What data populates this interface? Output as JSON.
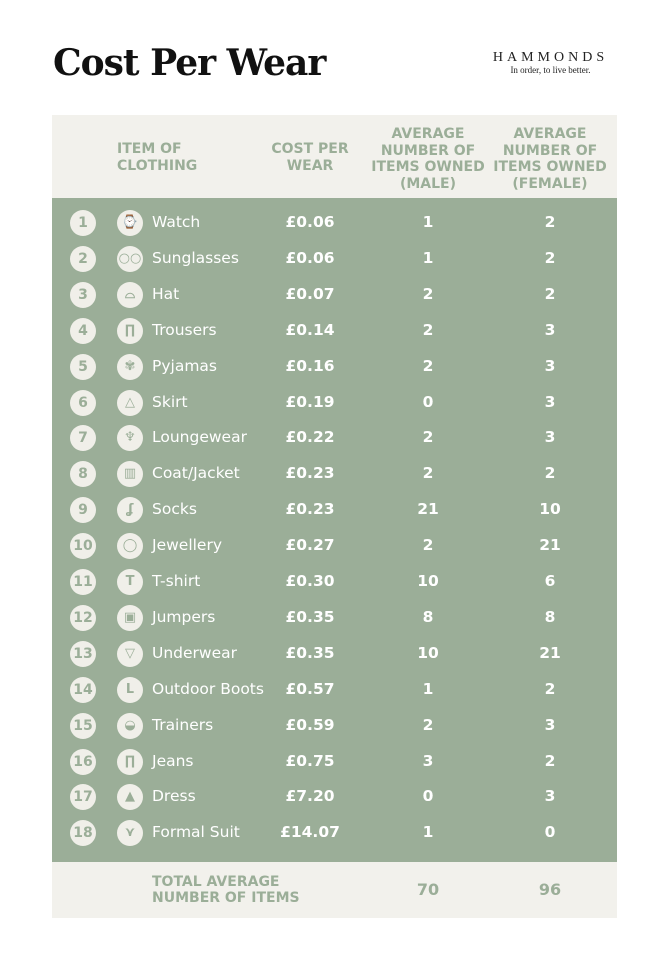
{
  "title": "Cost Per Wear",
  "brand": {
    "name": "HAMMONDS",
    "tagline": "In order, to live better."
  },
  "colors": {
    "green": "#9bae98",
    "cream": "#f2f1ec"
  },
  "headers": {
    "item": "ITEM OF CLOTHING",
    "cost": "COST PER WEAR",
    "male": "AVERAGE NUMBER OF ITEMS OWNED (MALE)",
    "female": "AVERAGE NUMBER OF ITEMS OWNED (FEMALE)"
  },
  "rows": [
    {
      "rank": "1",
      "icon": "watch-icon",
      "glyph": "⌚",
      "item": "Watch",
      "cost": "£0.06",
      "male": "1",
      "female": "2"
    },
    {
      "rank": "2",
      "icon": "sunglasses-icon",
      "glyph": "○○",
      "item": "Sunglasses",
      "cost": "£0.06",
      "male": "1",
      "female": "2"
    },
    {
      "rank": "3",
      "icon": "hat-icon",
      "glyph": "⌓",
      "item": "Hat",
      "cost": "£0.07",
      "male": "2",
      "female": "2"
    },
    {
      "rank": "4",
      "icon": "trousers-icon",
      "glyph": "∏",
      "item": "Trousers",
      "cost": "£0.14",
      "male": "2",
      "female": "3"
    },
    {
      "rank": "5",
      "icon": "pyjamas-icon",
      "glyph": "✾",
      "item": "Pyjamas",
      "cost": "£0.16",
      "male": "2",
      "female": "3"
    },
    {
      "rank": "6",
      "icon": "skirt-icon",
      "glyph": "△",
      "item": "Skirt",
      "cost": "£0.19",
      "male": "0",
      "female": "3"
    },
    {
      "rank": "7",
      "icon": "loungewear-icon",
      "glyph": "♆",
      "item": "Loungewear",
      "cost": "£0.22",
      "male": "2",
      "female": "3"
    },
    {
      "rank": "8",
      "icon": "coat-icon",
      "glyph": "▥",
      "item": "Coat/Jacket",
      "cost": "£0.23",
      "male": "2",
      "female": "2"
    },
    {
      "rank": "9",
      "icon": "socks-icon",
      "glyph": "ʆ",
      "item": "Socks",
      "cost": "£0.23",
      "male": "21",
      "female": "10"
    },
    {
      "rank": "10",
      "icon": "jewellery-icon",
      "glyph": "◯",
      "item": "Jewellery",
      "cost": "£0.27",
      "male": "2",
      "female": "21"
    },
    {
      "rank": "11",
      "icon": "tshirt-icon",
      "glyph": "T",
      "item": "T-shirt",
      "cost": "£0.30",
      "male": "10",
      "female": "6"
    },
    {
      "rank": "12",
      "icon": "jumper-icon",
      "glyph": "▣",
      "item": "Jumpers",
      "cost": "£0.35",
      "male": "8",
      "female": "8"
    },
    {
      "rank": "13",
      "icon": "underwear-icon",
      "glyph": "▽",
      "item": "Underwear",
      "cost": "£0.35",
      "male": "10",
      "female": "21"
    },
    {
      "rank": "14",
      "icon": "boot-icon",
      "glyph": "ᒪ",
      "item": "Outdoor Boots",
      "cost": "£0.57",
      "male": "1",
      "female": "2"
    },
    {
      "rank": "15",
      "icon": "trainer-icon",
      "glyph": "◒",
      "item": "Trainers",
      "cost": "£0.59",
      "male": "2",
      "female": "3"
    },
    {
      "rank": "16",
      "icon": "jeans-icon",
      "glyph": "∏",
      "item": "Jeans",
      "cost": "£0.75",
      "male": "3",
      "female": "2"
    },
    {
      "rank": "17",
      "icon": "dress-icon",
      "glyph": "▲",
      "item": "Dress",
      "cost": "£7.20",
      "male": "0",
      "female": "3"
    },
    {
      "rank": "18",
      "icon": "suit-icon",
      "glyph": "⋎",
      "item": "Formal Suit",
      "cost": "£14.07",
      "male": "1",
      "female": "0"
    }
  ],
  "total": {
    "label": "TOTAL AVERAGE NUMBER OF ITEMS",
    "male": "70",
    "female": "96"
  }
}
